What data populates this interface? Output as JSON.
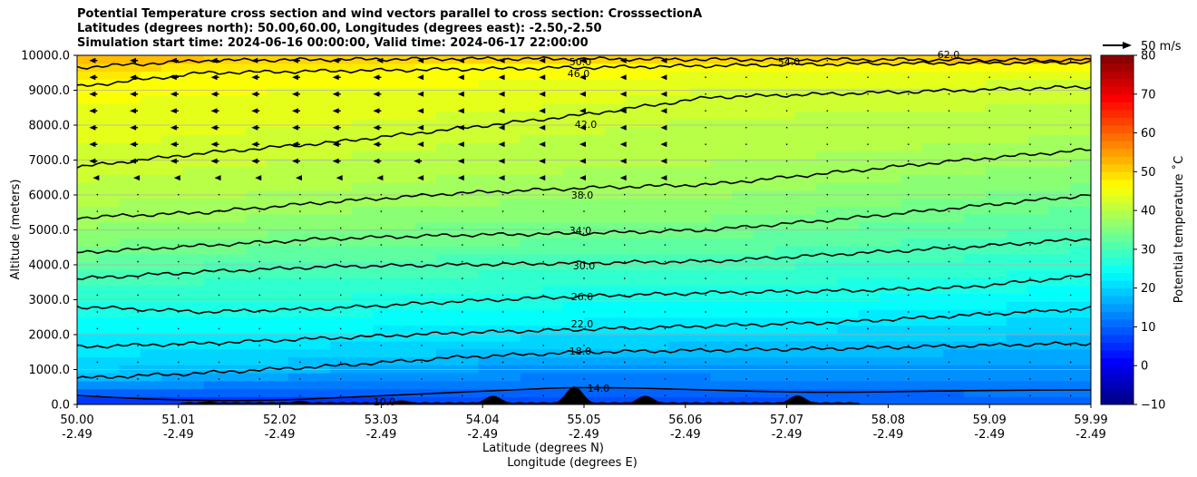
{
  "chart_data": {
    "type": "contourf",
    "title_lines": [
      "Potential Temperature cross section and wind vectors parallel to cross section: CrosssectionA",
      "Latitudes (degrees north): 50.00,60.00, Longitudes (degrees east): -2.50,-2.50",
      "Simulation start time: 2024-06-16 00:00:00, Valid time: 2024-06-17 22:00:00"
    ],
    "xlabel_lines": [
      "Latitude (degrees N)",
      "Longitude (degrees E)"
    ],
    "ylabel": "Altitude (meters)",
    "x_ticks": [
      {
        "lat": "50.00",
        "lon": "-2.49"
      },
      {
        "lat": "51.01",
        "lon": "-2.49"
      },
      {
        "lat": "52.02",
        "lon": "-2.49"
      },
      {
        "lat": "53.03",
        "lon": "-2.49"
      },
      {
        "lat": "54.04",
        "lon": "-2.49"
      },
      {
        "lat": "55.05",
        "lon": "-2.49"
      },
      {
        "lat": "56.06",
        "lon": "-2.49"
      },
      {
        "lat": "57.07",
        "lon": "-2.49"
      },
      {
        "lat": "58.08",
        "lon": "-2.49"
      },
      {
        "lat": "59.09",
        "lon": "-2.49"
      },
      {
        "lat": "59.99",
        "lon": "-2.49"
      }
    ],
    "x_range": [
      50.0,
      59.99
    ],
    "y_ticks": [
      "0.0",
      "1000.0",
      "2000.0",
      "3000.0",
      "4000.0",
      "5000.0",
      "6000.0",
      "7000.0",
      "8000.0",
      "9000.0",
      "10000.0"
    ],
    "ylim": [
      0,
      10000
    ],
    "colorbar": {
      "label": "Potential temperature $^\\circ$C",
      "label_display": "Potential temperature ˚C",
      "range": [
        -10,
        80
      ],
      "ticks": [
        "−10",
        "0",
        "10",
        "20",
        "30",
        "40",
        "50",
        "60",
        "70",
        "80"
      ],
      "colormap": "jet"
    },
    "quiver_key": "50 m/s",
    "contour_levels": [
      {
        "level": 18,
        "altitudes": [
          750,
          900,
          1100,
          1350,
          1500,
          1550,
          1600,
          1680,
          1750
        ]
      },
      {
        "level": 22,
        "altitudes": [
          1650,
          1750,
          1900,
          2050,
          2150,
          2250,
          2350,
          2550,
          2750
        ]
      },
      {
        "level": 26,
        "altitudes": [
          2800,
          2650,
          2750,
          2950,
          3100,
          3200,
          3250,
          3350,
          3700
        ]
      },
      {
        "level": 30,
        "altitudes": [
          3600,
          3800,
          3950,
          4000,
          4050,
          4100,
          4300,
          4500,
          4750
        ]
      },
      {
        "level": 34,
        "altitudes": [
          4350,
          4550,
          4750,
          4850,
          4900,
          5000,
          5300,
          5650,
          6000
        ]
      },
      {
        "level": 38,
        "altitudes": [
          5350,
          5500,
          5800,
          6050,
          6200,
          6300,
          6650,
          7000,
          7300
        ]
      },
      {
        "level": 42,
        "altitudes": [
          6800,
          7200,
          7500,
          7900,
          8300,
          8800,
          8900,
          9000,
          9100
        ]
      },
      {
        "level": 46,
        "altitudes": [
          9100,
          9500,
          9550,
          9600,
          9650,
          9700,
          9750,
          9780,
          9800
        ]
      },
      {
        "level": 50,
        "altitudes": [
          9650,
          9850,
          9880,
          9900,
          9900,
          9880,
          9880,
          9870,
          9860
        ]
      }
    ],
    "contour_label_texts": [
      "50.0",
      "46.0",
      "42.0",
      "38.0",
      "34.0",
      "30.0",
      "26.0",
      "22.0",
      "18.0",
      "54.0",
      "62.0",
      "14.0",
      "10.0"
    ],
    "terrain_peaks": [
      {
        "lat": 51.3,
        "height": 90
      },
      {
        "lat": 52.2,
        "height": 110
      },
      {
        "lat": 53.2,
        "height": 120
      },
      {
        "lat": 54.1,
        "height": 250
      },
      {
        "lat": 54.9,
        "height": 520
      },
      {
        "lat": 55.6,
        "height": 250
      },
      {
        "lat": 57.1,
        "height": 260
      }
    ],
    "wind_note": "strong leftward (southward) winds in upper-left region above ~7000 m"
  }
}
